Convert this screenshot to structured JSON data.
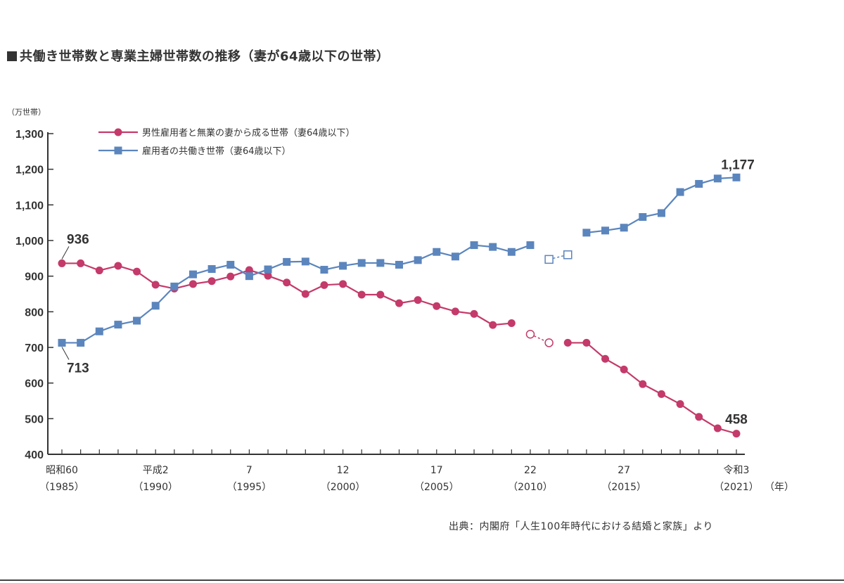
{
  "title": "共働き世帯数と専業主婦世帯数の推移（妻が64歳以下の世帯）",
  "source": "出典：内閣府「人生100年時代における結婚と家族」より",
  "chart_data": {
    "type": "line",
    "ylabel": "（万世帯）",
    "ylim": [
      400,
      1300
    ],
    "yticks": [
      400,
      500,
      600,
      700,
      800,
      900,
      1000,
      1100,
      1200,
      1300
    ],
    "ytick_labels": [
      "400",
      "500",
      "600",
      "700",
      "800",
      "900",
      "1,000",
      "1,100",
      "1,200",
      "1,300"
    ],
    "x": [
      1985,
      1986,
      1987,
      1988,
      1989,
      1990,
      1991,
      1992,
      1993,
      1994,
      1995,
      1996,
      1997,
      1998,
      1999,
      2000,
      2001,
      2002,
      2003,
      2004,
      2005,
      2006,
      2007,
      2008,
      2009,
      2010,
      2011,
      2012,
      2013,
      2014,
      2015,
      2016,
      2017,
      2018,
      2019,
      2020,
      2021
    ],
    "xlim": [
      1985,
      2021
    ],
    "x_unit_label": "（年）",
    "xticks": [
      {
        "x": 1985,
        "line1": "昭和60",
        "line2": "（1985）"
      },
      {
        "x": 1990,
        "line1": "平成2",
        "line2": "（1990）"
      },
      {
        "x": 1995,
        "line1": "7",
        "line2": "（1995）"
      },
      {
        "x": 2000,
        "line1": "12",
        "line2": "（2000）"
      },
      {
        "x": 2005,
        "line1": "17",
        "line2": "（2005）"
      },
      {
        "x": 2010,
        "line1": "22",
        "line2": "（2010）"
      },
      {
        "x": 2015,
        "line1": "27",
        "line2": "（2015）"
      },
      {
        "x": 2021,
        "line1": "令和3",
        "line2": "（2021）"
      }
    ],
    "series": [
      {
        "name": "男性雇用者と無業の妻から成る世帯（妻64歳以下）",
        "color": "#c43a6a",
        "marker": "circle",
        "values": [
          936,
          936,
          916,
          929,
          913,
          876,
          865,
          878,
          886,
          899,
          917,
          901,
          882,
          850,
          875,
          878,
          848,
          848,
          824,
          833,
          816,
          801,
          794,
          763,
          768,
          737,
          713,
          713,
          713,
          668,
          638,
          597,
          569,
          541,
          505,
          473,
          458
        ],
        "open_points": [
          2010,
          2011
        ],
        "gap_after": 2011,
        "annotation_start": "936",
        "annotation_end": "458"
      },
      {
        "name": "雇用者の共働き世帯（妻64歳以下）",
        "color": "#5b85bd",
        "marker": "square",
        "values": [
          713,
          713,
          745,
          764,
          775,
          817,
          871,
          905,
          920,
          932,
          900,
          919,
          940,
          941,
          918,
          929,
          937,
          937,
          932,
          945,
          968,
          955,
          987,
          982,
          968,
          987,
          947,
          960,
          1022,
          1028,
          1036,
          1066,
          1077,
          1136,
          1159,
          1174,
          1177
        ],
        "open_points": [
          2011,
          2012
        ],
        "gap_after": 2012,
        "annotation_start": "713",
        "annotation_end": "1,177"
      }
    ]
  }
}
